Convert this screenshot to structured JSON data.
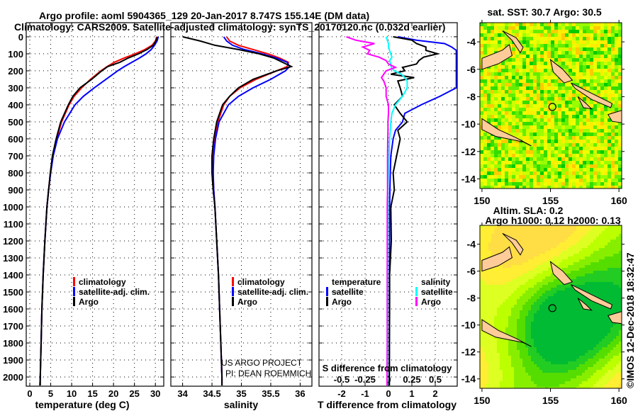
{
  "title_line1": "Argo profile: aoml 5904365_129 20-Jan-2017 8.747S 155.14E (DM data)",
  "title_line2": "Climatology: CARS2009. Satellite-adjusted climatology: synTS_20170120.nc (0.032d earlier)",
  "credit_line1": "US ARGO PROJECT",
  "credit_line2": "PI: DEAN ROEMMICH",
  "copyright": "©IMOS 12-Dec-2018 18:32:47",
  "colors": {
    "climatology": "#ff0000",
    "satellite": "#0000ff",
    "argo": "#000000",
    "s_satellite": "#00ffff",
    "s_argo": "#ff00ff",
    "land": "#ffcc99"
  },
  "chart_data": [
    {
      "type": "line",
      "name": "temperature",
      "xlabel": "temperature (deg C)",
      "ylabel": "depth",
      "xlim": [
        -0.85,
        32
      ],
      "ylim": [
        2054,
        -83
      ],
      "xticks": [
        0,
        5,
        10,
        15,
        20,
        25,
        30
      ],
      "yticks": [
        0,
        100,
        200,
        300,
        400,
        500,
        600,
        700,
        800,
        900,
        1000,
        1100,
        1200,
        1300,
        1400,
        1500,
        1600,
        1700,
        1800,
        1900,
        2000
      ],
      "legend": [
        "climatology",
        "satellite-adj. clim.",
        "Argo"
      ],
      "depth": [
        0,
        25,
        50,
        75,
        100,
        125,
        150,
        175,
        200,
        250,
        300,
        350,
        400,
        500,
        600,
        700,
        800,
        900,
        1000,
        1200,
        1400,
        1600,
        1800,
        2000,
        2050
      ],
      "series": [
        {
          "name": "climatology",
          "values": [
            30.3,
            30.0,
            29.2,
            27.5,
            25.2,
            22.5,
            20.2,
            18.5,
            17.0,
            14.5,
            12.4,
            10.6,
            9.4,
            7.6,
            6.4,
            5.5,
            4.9,
            4.5,
            4.1,
            3.6,
            3.2,
            2.9,
            2.7,
            2.5,
            2.4
          ]
        },
        {
          "name": "satellite-adj. clim.",
          "values": [
            30.7,
            30.4,
            29.8,
            29.0,
            27.8,
            26.2,
            24.4,
            22.6,
            21.0,
            18.2,
            15.4,
            12.8,
            10.8,
            8.3,
            6.6,
            5.6,
            5.0,
            4.5,
            4.1,
            3.6,
            3.2,
            2.9,
            2.7,
            2.5,
            2.4
          ]
        },
        {
          "name": "Argo",
          "values": [
            30.5,
            30.1,
            29.5,
            28.0,
            26.0,
            23.5,
            21.5,
            18.6,
            17.2,
            14.8,
            12.0,
            10.3,
            9.2,
            7.4,
            6.3,
            5.4,
            4.9,
            4.5,
            4.1,
            3.6,
            3.2,
            2.9,
            2.7,
            2.5,
            2.5
          ]
        }
      ]
    },
    {
      "type": "line",
      "name": "salinity",
      "xlabel": "salinity",
      "xlim": [
        33.8,
        36.2
      ],
      "ylim": [
        2054,
        -83
      ],
      "xticks": [
        34,
        34.5,
        35,
        35.5,
        36
      ],
      "legend": [
        "climatology",
        "satellite-adj. clim.",
        "Argo"
      ],
      "depth": [
        0,
        25,
        50,
        75,
        100,
        125,
        150,
        175,
        200,
        250,
        300,
        350,
        400,
        500,
        600,
        700,
        800,
        900,
        1000,
        1200,
        1400,
        1600,
        1800,
        2000,
        2050
      ],
      "series": [
        {
          "name": "climatology",
          "values": [
            34.75,
            34.8,
            34.95,
            35.2,
            35.45,
            35.65,
            35.8,
            35.78,
            35.6,
            35.25,
            34.98,
            34.8,
            34.7,
            34.6,
            34.55,
            34.52,
            34.52,
            34.53,
            34.55,
            34.58,
            34.61,
            34.63,
            34.65,
            34.67,
            34.67
          ]
        },
        {
          "name": "satellite-adj. clim.",
          "values": [
            34.7,
            34.75,
            34.85,
            35.05,
            35.35,
            35.6,
            35.78,
            35.82,
            35.75,
            35.5,
            35.2,
            34.95,
            34.78,
            34.62,
            34.56,
            34.53,
            34.52,
            34.53,
            34.55,
            34.58,
            34.61,
            34.63,
            34.65,
            34.67,
            34.67
          ]
        },
        {
          "name": "Argo",
          "values": [
            34.0,
            34.3,
            34.55,
            34.95,
            35.3,
            35.55,
            35.7,
            35.85,
            35.6,
            35.2,
            34.95,
            34.8,
            34.68,
            34.58,
            34.53,
            34.5,
            34.5,
            34.52,
            34.55,
            34.58,
            34.61,
            34.63,
            34.65,
            34.67,
            34.67
          ]
        }
      ]
    },
    {
      "type": "line",
      "name": "differences",
      "xlabel": "T difference from climatology",
      "x2label": "S difference from climatology",
      "xlim": [
        -2.97,
        2.94
      ],
      "ylim": [
        2054,
        -83
      ],
      "xticks": [
        -2,
        -1,
        0,
        1,
        2
      ],
      "x2ticks": [
        "-0.5",
        "-0.25",
        "0",
        "0.25",
        "0.5"
      ],
      "legend_temperature_title": "temperature",
      "legend_salinity_title": "salinity",
      "legend": [
        "satellite",
        "Argo",
        "satellite",
        "Argo"
      ],
      "depth": [
        0,
        20,
        40,
        60,
        80,
        100,
        120,
        140,
        160,
        180,
        200,
        220,
        240,
        260,
        300,
        350,
        400,
        450,
        500,
        550,
        600,
        700,
        800,
        900,
        1000,
        1200,
        1400,
        1600,
        1800,
        2000,
        2050
      ],
      "series": [
        {
          "name": "T satellite",
          "values": [
            0.4,
            1.2,
            2.4,
            2.7,
            2.9,
            2.9,
            2.9,
            2.9,
            2.9,
            2.9,
            2.9,
            2.9,
            2.9,
            2.9,
            2.9,
            2.2,
            1.4,
            0.7,
            0.6,
            0.3,
            0.2,
            0.1,
            0.08,
            0.06,
            0.05,
            0.05,
            0.04,
            0.04,
            0.04,
            0.03,
            0.03
          ]
        },
        {
          "name": "T Argo",
          "values": [
            0.2,
            1.0,
            1.2,
            1.6,
            1.6,
            2.1,
            1.5,
            1.3,
            1.2,
            0.6,
            0.7,
            0.1,
            1.1,
            0.4,
            0.5,
            0.6,
            0.25,
            0.5,
            0.8,
            0.4,
            0.5,
            0.35,
            0.2,
            0.25,
            0.1,
            0.12,
            0.05,
            0.05,
            0.04,
            0.04,
            0.04
          ]
        },
        {
          "name": "S satellite",
          "values": [
            -0.1,
            -0.05,
            0.0,
            0.0,
            0.05,
            0.1,
            0.15,
            0.05,
            0.1,
            0.12,
            0.25,
            0.55,
            0.7,
            0.8,
            0.8,
            0.6,
            0.3,
            0.15,
            0.1,
            0.08,
            0.05,
            0.02,
            0.0,
            -0.02,
            -0.03,
            -0.04,
            -0.05,
            -0.05,
            -0.05,
            -0.06,
            -0.06
          ]
        },
        {
          "name": "S Argo",
          "values": [
            -1.8,
            -1.4,
            -0.6,
            -1.1,
            -0.8,
            -0.9,
            -0.4,
            -0.1,
            0.0,
            0.3,
            -0.1,
            -0.2,
            -0.3,
            -0.2,
            -0.1,
            -0.1,
            0.0,
            0.0,
            -0.02,
            -0.02,
            -0.03,
            -0.04,
            -0.04,
            -0.04,
            -0.05,
            -0.05,
            -0.05,
            -0.05,
            -0.05,
            -0.06,
            -0.06
          ]
        }
      ]
    },
    {
      "type": "heatmap",
      "name": "sst_map",
      "title": "sat. SST: 30.7 Argo: 30.5",
      "xlim": [
        149.85,
        160.2
      ],
      "ylim": [
        -14.7,
        -2.6
      ],
      "xticks": [
        150,
        155,
        160
      ],
      "yticks": [
        -4,
        -6,
        -8,
        -10,
        -12,
        -14
      ],
      "marker": {
        "lon": 155.14,
        "lat": -8.747
      }
    },
    {
      "type": "heatmap",
      "name": "sla_map",
      "title1": "Altim. SLA: 0.2",
      "title2": "Argo h1000: 0.12 h2000: 0.13",
      "xlim": [
        149.85,
        160.2
      ],
      "ylim": [
        -14.7,
        -2.6
      ],
      "xticks": [
        150,
        155,
        160
      ],
      "yticks": [
        -4,
        -6,
        -8,
        -10,
        -12,
        -14
      ],
      "marker": {
        "lon": 155.14,
        "lat": -8.747
      }
    }
  ]
}
